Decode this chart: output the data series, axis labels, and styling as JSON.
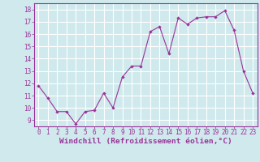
{
  "x": [
    0,
    1,
    2,
    3,
    4,
    5,
    6,
    7,
    8,
    9,
    10,
    11,
    12,
    13,
    14,
    15,
    16,
    17,
    18,
    19,
    20,
    21,
    22,
    23
  ],
  "y": [
    11.8,
    10.8,
    9.7,
    9.7,
    8.7,
    9.7,
    9.8,
    11.2,
    10.0,
    12.5,
    13.4,
    13.4,
    16.2,
    16.6,
    14.4,
    17.3,
    16.8,
    17.3,
    17.4,
    17.4,
    17.9,
    16.3,
    13.0,
    11.2
  ],
  "line_color": "#993399",
  "marker": "D",
  "marker_size": 2.2,
  "bg_color": "#cfe9ed",
  "grid_color": "#ffffff",
  "xlabel": "Windchill (Refroidissement éolien,°C)",
  "yticks": [
    9,
    10,
    11,
    12,
    13,
    14,
    15,
    16,
    17,
    18
  ],
  "xlim": [
    -0.5,
    23.5
  ],
  "ylim": [
    8.5,
    18.5
  ],
  "tick_color": "#993399",
  "label_color": "#993399",
  "tick_fontsize": 5.5,
  "xlabel_fontsize": 6.8,
  "linewidth": 0.8
}
